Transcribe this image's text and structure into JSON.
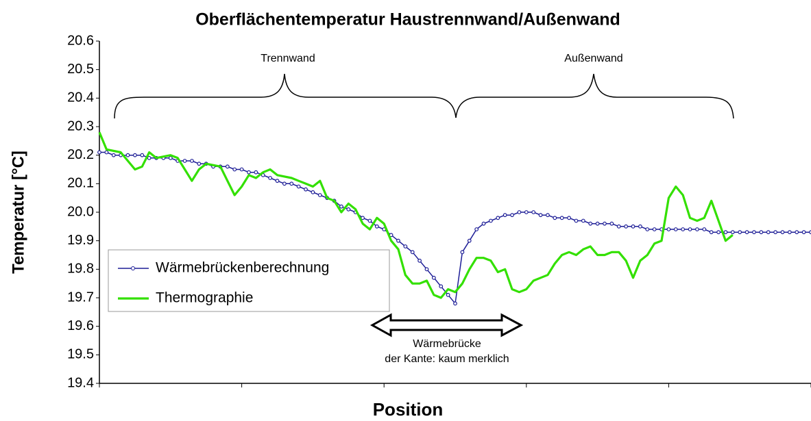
{
  "chart_data": {
    "type": "line",
    "title": "Oberflächentemperatur Haustrennwand/Außenwand",
    "xlabel": "Position",
    "ylabel": "Temperatur [°C]",
    "xlim": [
      0,
      100
    ],
    "xticks": [
      0,
      20,
      40,
      60,
      80,
      100
    ],
    "ylim": [
      19.4,
      20.6
    ],
    "yticks": [
      19.4,
      19.5,
      19.6,
      19.7,
      19.8,
      19.9,
      {
        "value": 20,
        "label": "20.0"
      },
      20.1,
      20.2,
      20.3,
      20.4,
      20.5,
      20.6
    ],
    "grid": false,
    "legend": "left",
    "annotations": [
      "Trennwand",
      "Außenwand",
      "Wärmebrücke",
      "der Kante: kaum merklich"
    ],
    "series": [
      {
        "name": "Wärmebrückenberechnung",
        "color": "#1c1c96",
        "markers": true,
        "x": [
          0,
          1,
          2,
          3,
          4,
          5,
          6,
          7,
          8,
          9,
          10,
          11,
          12,
          13,
          14,
          15,
          16,
          17,
          18,
          19,
          20,
          21,
          22,
          23,
          24,
          25,
          26,
          27,
          28,
          29,
          30,
          31,
          32,
          33,
          34,
          35,
          36,
          37,
          38,
          39,
          40,
          41,
          42,
          43,
          44,
          45,
          46,
          47,
          48,
          49,
          50,
          51,
          52,
          53,
          54,
          55,
          56,
          57,
          58,
          59,
          60,
          61,
          62,
          63,
          64,
          65,
          66,
          67,
          68,
          69,
          70,
          71,
          72,
          73,
          74,
          75,
          76,
          77,
          78,
          79,
          80,
          81,
          82,
          83,
          84,
          85,
          86,
          87,
          88,
          89,
          90,
          91,
          92,
          93,
          94,
          95,
          96,
          97,
          98,
          99,
          100
        ],
        "values": [
          20.21,
          20.21,
          20.2,
          20.2,
          20.2,
          20.2,
          20.2,
          20.19,
          20.19,
          20.19,
          20.19,
          20.18,
          20.18,
          20.18,
          20.17,
          20.17,
          20.16,
          20.16,
          20.16,
          20.15,
          20.15,
          20.14,
          20.14,
          20.13,
          20.12,
          20.11,
          20.1,
          20.1,
          20.09,
          20.08,
          20.07,
          20.06,
          20.05,
          20.04,
          20.02,
          20.01,
          20,
          19.98,
          19.97,
          19.95,
          19.94,
          19.92,
          19.9,
          19.88,
          19.86,
          19.83,
          19.8,
          19.77,
          19.74,
          19.71,
          19.68,
          19.86,
          19.9,
          19.94,
          19.96,
          19.97,
          19.98,
          19.99,
          19.99,
          20,
          20,
          20,
          19.99,
          19.99,
          19.98,
          19.98,
          19.98,
          19.97,
          19.97,
          19.96,
          19.96,
          19.96,
          19.96,
          19.95,
          19.95,
          19.95,
          19.95,
          19.94,
          19.94,
          19.94,
          19.94,
          19.94,
          19.94,
          19.94,
          19.94,
          19.94,
          19.93,
          19.93,
          19.93,
          19.93,
          19.93,
          19.93,
          19.93,
          19.93,
          19.93,
          19.93,
          19.93,
          19.93,
          19.93,
          19.93,
          19.93
        ]
      },
      {
        "name": "Thermographie",
        "color": "#33e000",
        "markers": false,
        "x": [
          0,
          1,
          3,
          5,
          6,
          7,
          8,
          10,
          11,
          12,
          13,
          14,
          15,
          17,
          18,
          19,
          20,
          21,
          22,
          23,
          24,
          25,
          27,
          28,
          29,
          30,
          31,
          32,
          33,
          34,
          35,
          36,
          37,
          38,
          39,
          40,
          41,
          42,
          43,
          44,
          45,
          46,
          47,
          48,
          49,
          50,
          51,
          52,
          53,
          54,
          55,
          56,
          57,
          58,
          59,
          60,
          61,
          62,
          63,
          64,
          65,
          66,
          67,
          68,
          69,
          70,
          71,
          72,
          73,
          74,
          75,
          76,
          77,
          78,
          79,
          80,
          81,
          82,
          83,
          84,
          85,
          86,
          87,
          88,
          89
        ],
        "values": [
          20.28,
          20.22,
          20.21,
          20.15,
          20.16,
          20.21,
          20.19,
          20.2,
          20.19,
          20.15,
          20.11,
          20.15,
          20.17,
          20.16,
          20.11,
          20.06,
          20.09,
          20.13,
          20.12,
          20.14,
          20.15,
          20.13,
          20.12,
          20.11,
          20.1,
          20.09,
          20.11,
          20.05,
          20.04,
          20,
          20.03,
          20.01,
          19.96,
          19.94,
          19.98,
          19.96,
          19.9,
          19.87,
          19.78,
          19.75,
          19.75,
          19.76,
          19.71,
          19.7,
          19.73,
          19.72,
          19.75,
          19.8,
          19.84,
          19.84,
          19.83,
          19.79,
          19.8,
          19.73,
          19.72,
          19.73,
          19.76,
          19.77,
          19.78,
          19.82,
          19.85,
          19.86,
          19.85,
          19.87,
          19.88,
          19.85,
          19.85,
          19.86,
          19.86,
          19.83,
          19.77,
          19.83,
          19.85,
          19.89,
          19.9,
          20.05,
          20.09,
          20.06,
          19.98,
          19.97,
          19.98,
          20.04,
          19.97,
          19.9,
          19.92
        ]
      }
    ]
  }
}
